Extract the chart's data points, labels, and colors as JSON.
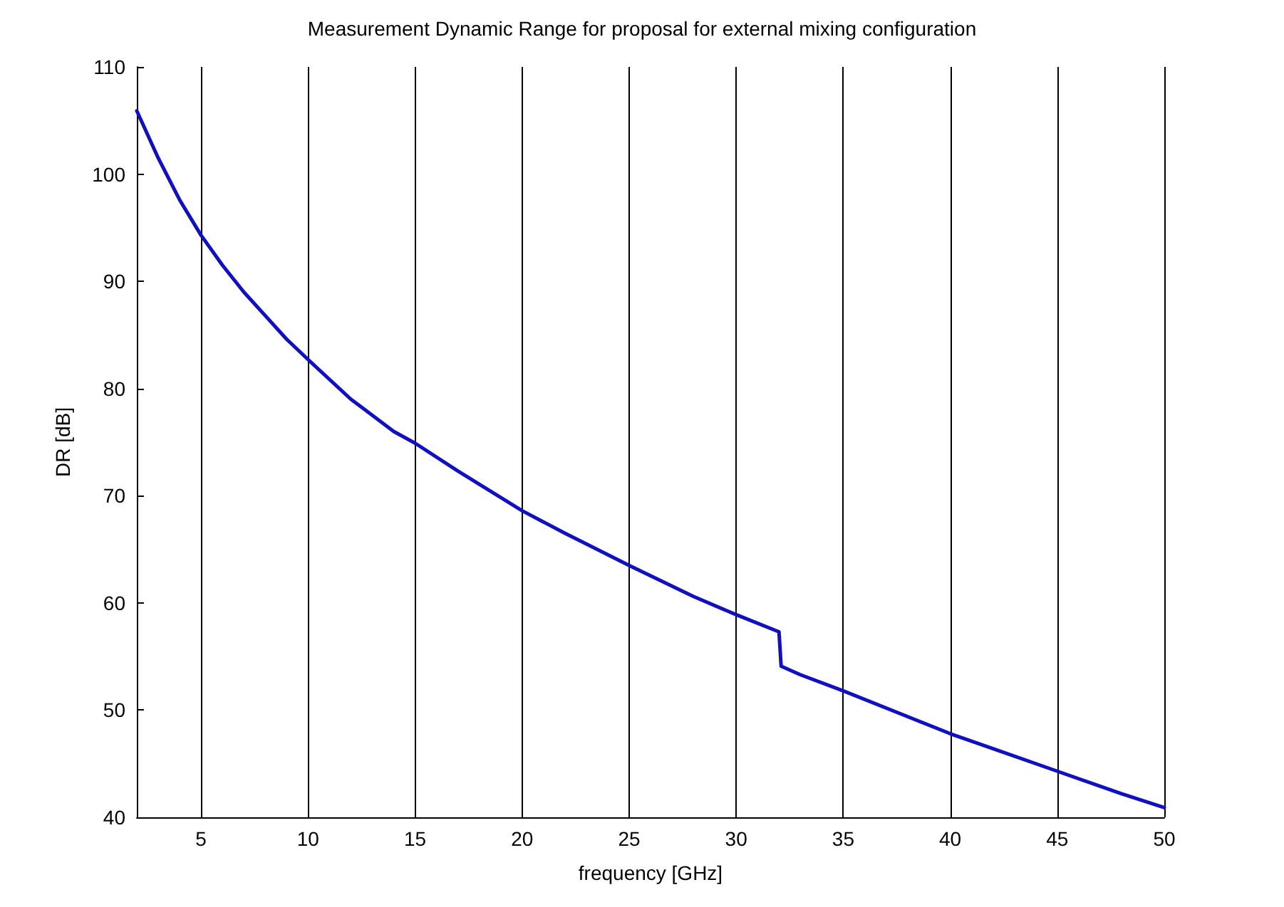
{
  "chart_data": {
    "type": "line",
    "title": "Measurement Dynamic Range for proposal for external mixing configuration",
    "xlabel": "frequency [GHz]",
    "ylabel": "DR [dB]",
    "series": [
      {
        "color": "#1010c0",
        "x": [
          2,
          3,
          4,
          5,
          6,
          7,
          8,
          9,
          10,
          12,
          14,
          15,
          17,
          20,
          22,
          25,
          28,
          30,
          32,
          32.1,
          33,
          35,
          38,
          40,
          42,
          45,
          48,
          50
        ],
        "values": [
          105.9,
          101.5,
          97.6,
          94.3,
          91.5,
          89,
          86.8,
          84.6,
          82.7,
          79,
          76,
          74.9,
          72.3,
          68.6,
          66.5,
          63.5,
          60.6,
          58.9,
          57.3,
          54.1,
          53.3,
          51.8,
          49.4,
          47.8,
          46.4,
          44.3,
          42.2,
          40.9
        ]
      }
    ],
    "xlim": [
      2,
      50
    ],
    "xticks": [
      5,
      10,
      15,
      20,
      25,
      30,
      35,
      40,
      45,
      50
    ],
    "ylim": [
      40,
      110
    ],
    "yticks": [
      40,
      50,
      60,
      70,
      80,
      90,
      100,
      110
    ],
    "grid": "x",
    "marker": "none",
    "line_style": "solid"
  }
}
